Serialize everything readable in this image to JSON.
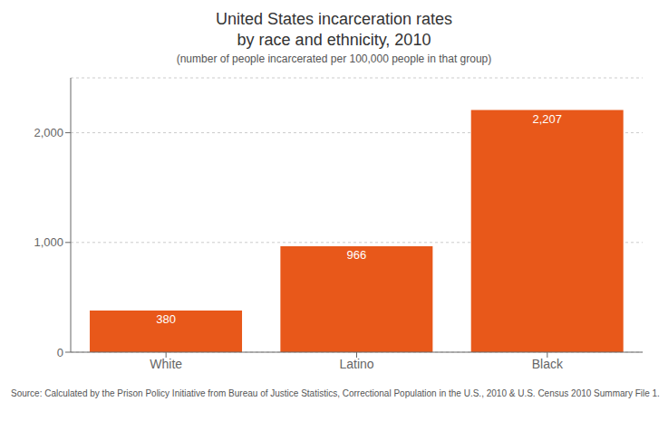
{
  "chart_data": {
    "type": "bar",
    "title": "United States incarceration rates\nby race and ethnicity, 2010",
    "subtitle": "(number of people incarcerated per 100,000 people in that group)",
    "annotations": [
      "Source: Calculated by the Prison Policy Initiative from Bureau of Justice Statistics, Correctional Population in the U.S., 2010 & U.S. Census 2010 Summary File 1."
    ],
    "categories": [
      "White",
      "Latino",
      "Black"
    ],
    "values": [
      380,
      966,
      2207
    ],
    "value_labels": [
      "380",
      "966",
      "2,207"
    ],
    "data_labels": true,
    "color": "#E8581A",
    "ylim": [
      0,
      2500
    ],
    "yticks": [
      0,
      {
        "value": 1000,
        "label": "1,000"
      },
      {
        "value": 2000,
        "label": "2,000"
      }
    ],
    "grid": true
  }
}
